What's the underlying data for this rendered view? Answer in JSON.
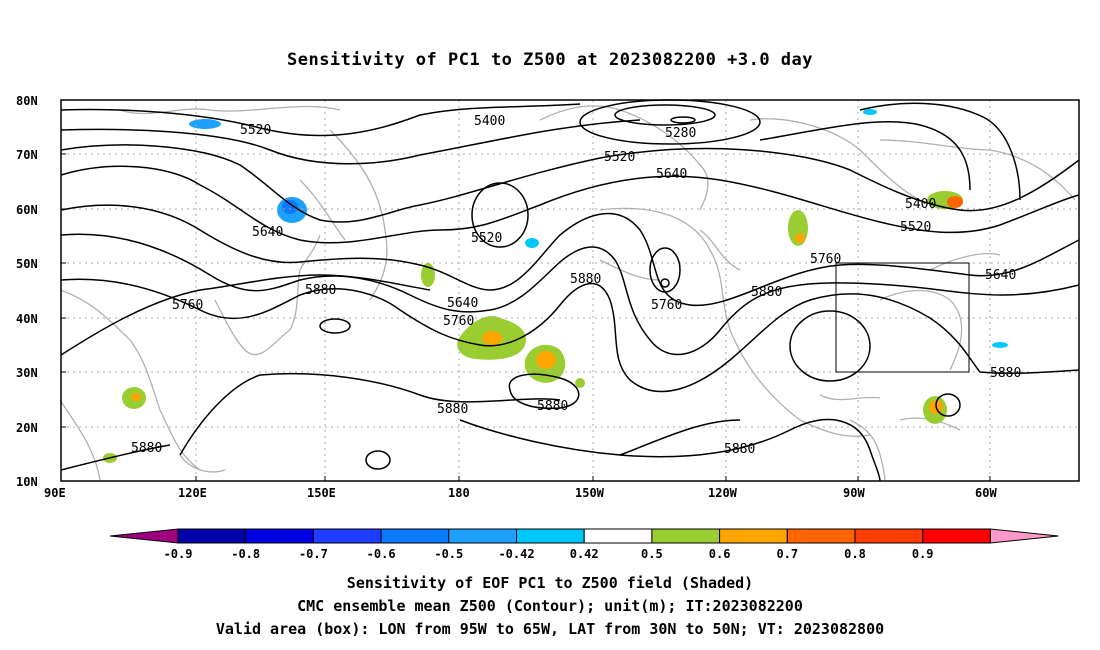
{
  "title": "Sensitivity of PC1 to Z500 at 2023082200 +3.0 day",
  "map": {
    "lat_labels": [
      "80N",
      "70N",
      "60N",
      "50N",
      "40N",
      "30N",
      "20N",
      "10N"
    ],
    "lon_labels": [
      "90E",
      "120E",
      "150E",
      "180",
      "150W",
      "120W",
      "90W",
      "60W"
    ],
    "contour_labels": [
      {
        "text": "5520",
        "id": "c5520a"
      },
      {
        "text": "5400",
        "id": "c5400a"
      },
      {
        "text": "5280",
        "id": "c5280"
      },
      {
        "text": "5520",
        "id": "c5520b"
      },
      {
        "text": "5640",
        "id": "c5640a"
      },
      {
        "text": "5400",
        "id": "c5400b"
      },
      {
        "text": "5520",
        "id": "c5520c"
      },
      {
        "text": "5640",
        "id": "c5640b"
      },
      {
        "text": "5520",
        "id": "c5520d"
      },
      {
        "text": "5760",
        "id": "c5760a"
      },
      {
        "text": "5880",
        "id": "c5880a"
      },
      {
        "text": "5640",
        "id": "c5640c"
      },
      {
        "text": "5760",
        "id": "c5760b"
      },
      {
        "text": "5880",
        "id": "c5880b"
      },
      {
        "text": "5760",
        "id": "c5760c"
      },
      {
        "text": "5880",
        "id": "c5880c"
      },
      {
        "text": "5760",
        "id": "c5760d"
      },
      {
        "text": "5640",
        "id": "c5640d"
      },
      {
        "text": "5880",
        "id": "c5880d"
      },
      {
        "text": "5880",
        "id": "c5880e"
      },
      {
        "text": "5880",
        "id": "c5880f"
      },
      {
        "text": "5880",
        "id": "c5880g"
      },
      {
        "text": "5880",
        "id": "c5880h"
      }
    ],
    "valid_box": {
      "lon_from": "95W",
      "lon_to": "65W",
      "lat_from": "30N",
      "lat_to": "50N"
    }
  },
  "legend": {
    "labels": [
      "-0.9",
      "-0.8",
      "-0.7",
      "-0.6",
      "-0.5",
      "-0.42",
      "0.42",
      "0.5",
      "0.6",
      "0.7",
      "0.8",
      "0.9"
    ],
    "colors": [
      "#a0007f",
      "#0000a8",
      "#0000e6",
      "#1e3cff",
      "#0a78ff",
      "#1ea0ff",
      "#00c8ff",
      "#ffffff",
      "#9acd32",
      "#ffa500",
      "#ff6400",
      "#ff3c00",
      "#ff0000",
      "#ff99cc"
    ]
  },
  "captions": {
    "line1": "Sensitivity of EOF PC1 to Z500 field (Shaded)",
    "line2": "CMC ensemble mean Z500 (Contour); unit(m); IT:2023082200",
    "line3": "Valid area (box): LON from 95W to 65W, LAT from 30N to 50N; VT: 2023082800"
  }
}
